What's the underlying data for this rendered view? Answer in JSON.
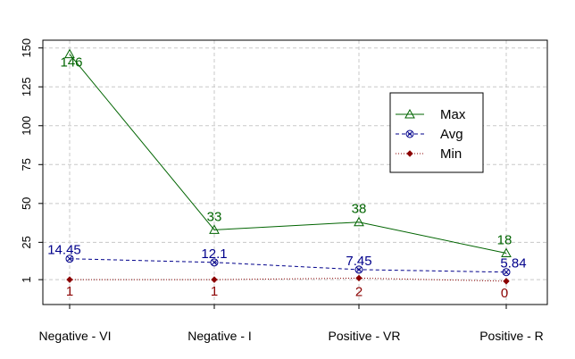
{
  "chart_data": {
    "type": "line",
    "categories": [
      "Negative - VI",
      "Negative - I",
      "Positive - VR",
      "Positive - R"
    ],
    "y_ticks": [
      "1",
      "25",
      "50",
      "75",
      "100",
      "125",
      "150"
    ],
    "ylim": [
      -15,
      155
    ],
    "grid": true,
    "legend_position": "right",
    "series": [
      {
        "name": "Max",
        "values": [
          146,
          33,
          38,
          18
        ],
        "labels": [
          "146",
          "33",
          "38",
          "18"
        ],
        "color": "#006400",
        "line": "solid",
        "marker": "open-triangle"
      },
      {
        "name": "Avg",
        "values": [
          14.45,
          12.1,
          7.45,
          5.84
        ],
        "labels": [
          "14.45",
          "12.1",
          "7.45",
          "5.84"
        ],
        "color": "#00008b",
        "line": "dashed",
        "marker": "circle-cross"
      },
      {
        "name": "Min",
        "values": [
          1,
          1,
          2,
          0
        ],
        "labels": [
          "1",
          "1",
          "2",
          "0"
        ],
        "color": "#8b0000",
        "line": "dotted",
        "marker": "filled-diamond"
      }
    ]
  }
}
